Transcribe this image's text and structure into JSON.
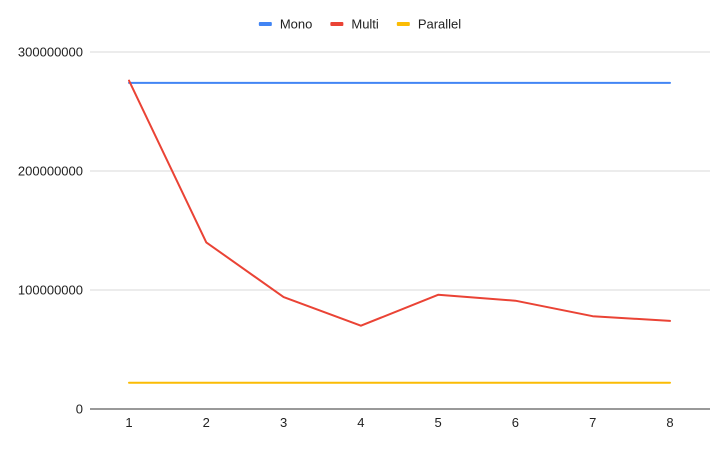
{
  "chart_data": {
    "type": "line",
    "title": "",
    "xlabel": "",
    "ylabel": "",
    "x": [
      1,
      2,
      3,
      4,
      5,
      6,
      7,
      8
    ],
    "x_tick_labels": [
      "1",
      "2",
      "3",
      "4",
      "5",
      "6",
      "7",
      "8"
    ],
    "ylim": [
      0,
      300000000
    ],
    "y_ticks": [
      0,
      100000000,
      200000000,
      300000000
    ],
    "y_tick_labels": [
      "0",
      "100000000",
      "200000000",
      "300000000"
    ],
    "grid": true,
    "legend_position": "top",
    "series": [
      {
        "name": "Mono",
        "color": "#4285F4",
        "values": [
          274000000,
          274000000,
          274000000,
          274000000,
          274000000,
          274000000,
          274000000,
          274000000
        ]
      },
      {
        "name": "Multi",
        "color": "#EA4335",
        "values": [
          276000000,
          140000000,
          94000000,
          70000000,
          96000000,
          91000000,
          78000000,
          74000000
        ]
      },
      {
        "name": "Parallel",
        "color": "#FBBC04",
        "values": [
          22000000,
          22000000,
          22000000,
          22000000,
          22000000,
          22000000,
          22000000,
          22000000
        ]
      }
    ]
  }
}
